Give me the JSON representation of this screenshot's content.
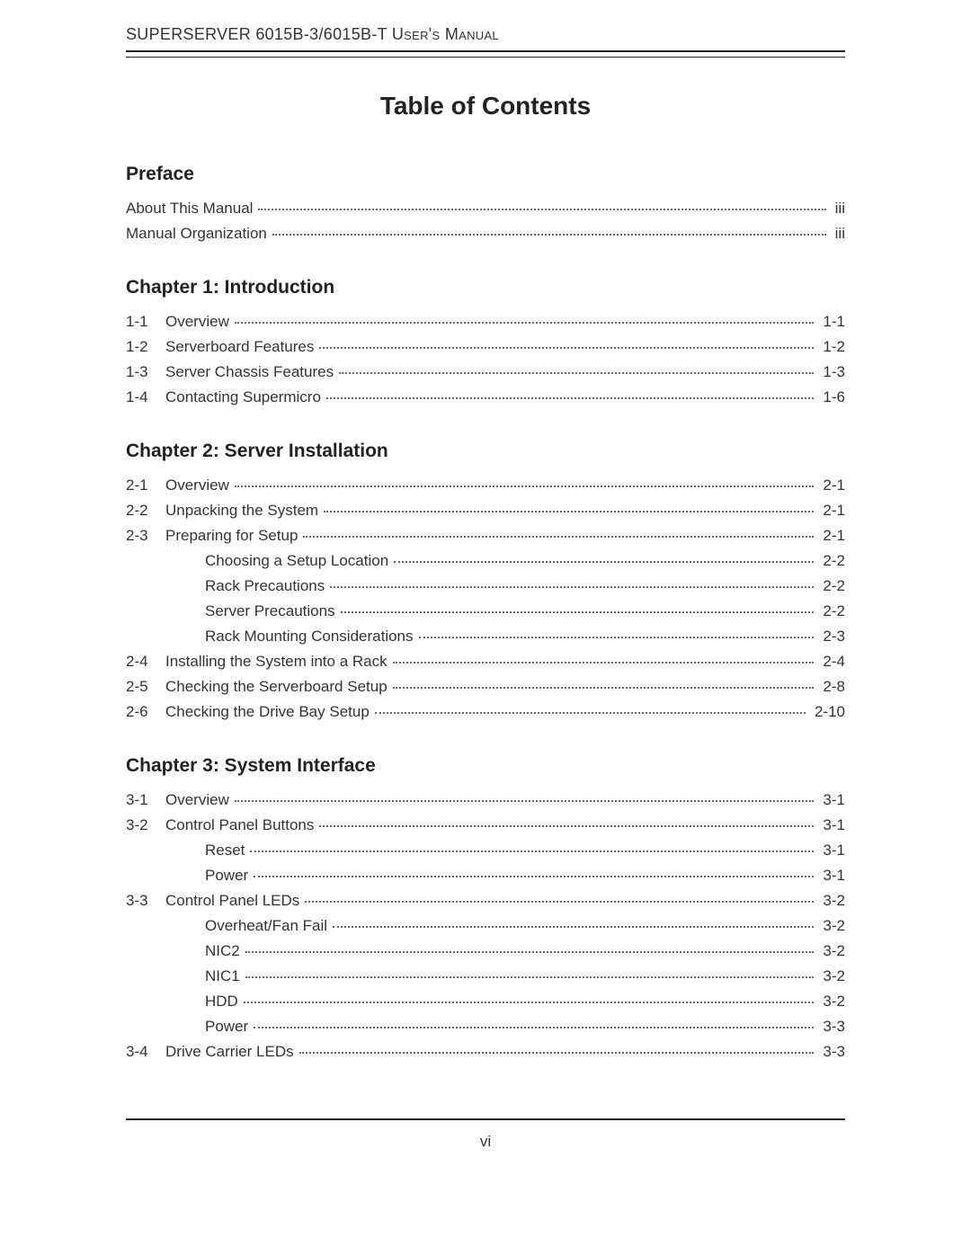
{
  "doc": {
    "header": "SUPERSERVER 6015B-3/6015B-T User's Manual",
    "toc_title": "Table of Contents",
    "page_number": "vi",
    "text_color": "#333333",
    "rule_color": "#222222",
    "dot_color": "#666666",
    "background_color": "#ffffff",
    "fonts": {
      "body_size_pt": 13,
      "title_size_pt": 21,
      "section_size_pt": 16,
      "family": "Arial"
    }
  },
  "sections": [
    {
      "heading": "Preface",
      "entries": [
        {
          "num": "",
          "label": "About This Manual",
          "page": "iii",
          "indent": 0
        },
        {
          "num": "",
          "label": "Manual Organization",
          "page": "iii",
          "indent": 0
        }
      ]
    },
    {
      "heading": "Chapter 1: Introduction",
      "entries": [
        {
          "num": "1-1",
          "label": "Overview",
          "page": "1-1",
          "indent": 0
        },
        {
          "num": "1-2",
          "label": "Serverboard Features",
          "page": "1-2",
          "indent": 0
        },
        {
          "num": "1-3",
          "label": "Server Chassis Features",
          "page": "1-3",
          "indent": 0
        },
        {
          "num": "1-4",
          "label": "Contacting Supermicro",
          "page": "1-6",
          "indent": 0
        }
      ]
    },
    {
      "heading": "Chapter 2: Server Installation",
      "entries": [
        {
          "num": "2-1",
          "label": "Overview",
          "page": "2-1",
          "indent": 0
        },
        {
          "num": "2-2",
          "label": "Unpacking the System",
          "page": "2-1",
          "indent": 0
        },
        {
          "num": "2-3",
          "label": "Preparing for Setup",
          "page": "2-1",
          "indent": 0
        },
        {
          "num": "",
          "label": "Choosing a Setup Location",
          "page": "2-2",
          "indent": 1
        },
        {
          "num": "",
          "label": "Rack Precautions",
          "page": "2-2",
          "indent": 1
        },
        {
          "num": "",
          "label": "Server Precautions",
          "page": "2-2",
          "indent": 1
        },
        {
          "num": "",
          "label": "Rack Mounting Considerations",
          "page": "2-3",
          "indent": 1
        },
        {
          "num": "2-4",
          "label": "Installing the System into a Rack",
          "page": "2-4",
          "indent": 0
        },
        {
          "num": "2-5",
          "label": "Checking the Serverboard Setup",
          "page": "2-8",
          "indent": 0
        },
        {
          "num": "2-6",
          "label": "Checking the Drive Bay Setup",
          "page": "2-10",
          "indent": 0
        }
      ]
    },
    {
      "heading": "Chapter 3: System Interface",
      "entries": [
        {
          "num": "3-1",
          "label": "Overview",
          "page": "3-1",
          "indent": 0
        },
        {
          "num": "3-2",
          "label": "Control Panel Buttons",
          "page": "3-1",
          "indent": 0
        },
        {
          "num": "",
          "label": "Reset",
          "page": "3-1",
          "indent": 1
        },
        {
          "num": "",
          "label": "Power",
          "page": "3-1",
          "indent": 1
        },
        {
          "num": "3-3",
          "label": "Control Panel LEDs",
          "page": "3-2",
          "indent": 0
        },
        {
          "num": "",
          "label": "Overheat/Fan Fail",
          "page": "3-2",
          "indent": 1
        },
        {
          "num": "",
          "label": "NIC2",
          "page": "3-2",
          "indent": 1
        },
        {
          "num": "",
          "label": "NIC1",
          "page": "3-2",
          "indent": 1
        },
        {
          "num": "",
          "label": "HDD",
          "page": "3-2",
          "indent": 1
        },
        {
          "num": "",
          "label": "Power",
          "page": "3-3",
          "indent": 1
        },
        {
          "num": "3-4",
          "label": "Drive Carrier LEDs",
          "page": "3-3",
          "indent": 0
        }
      ]
    }
  ]
}
